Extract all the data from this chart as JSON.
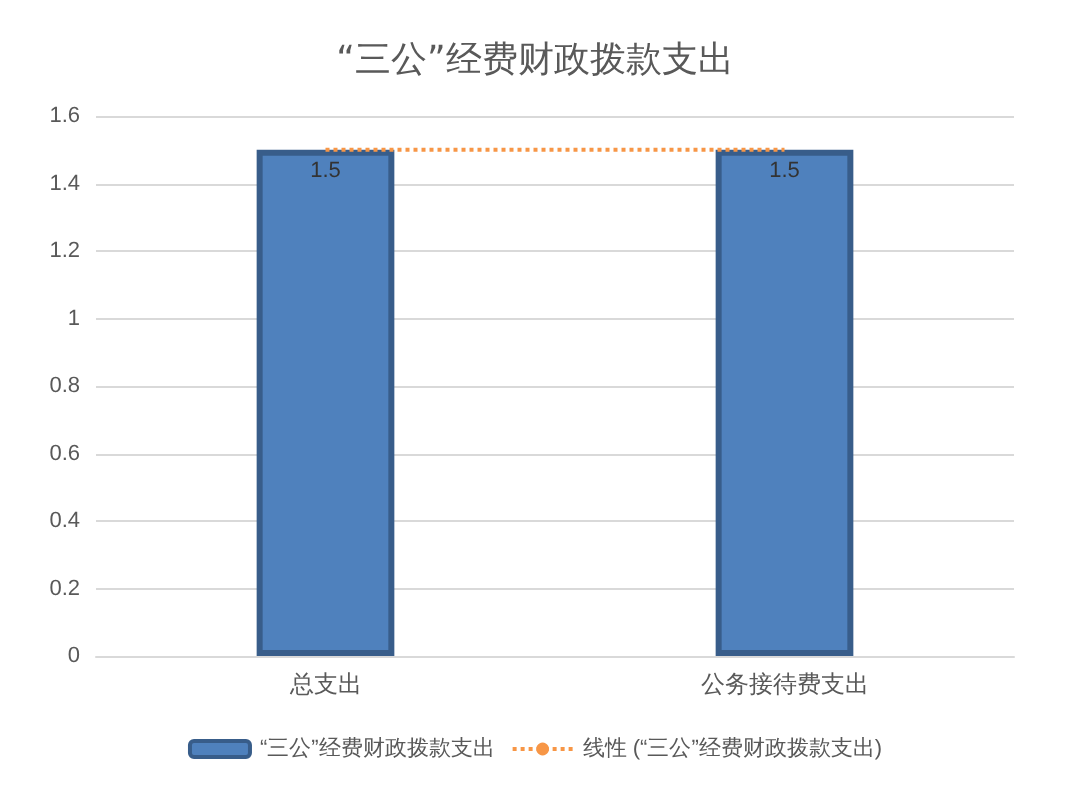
{
  "chart_data": {
    "type": "bar",
    "title": "“三公”经费财政拨款支出",
    "categories": [
      "总支出",
      "公务接待费支出"
    ],
    "series": [
      {
        "name": "“三公”经费财政拨款支出",
        "color": "#4f81bd",
        "values": [
          1.5,
          1.5
        ],
        "value_labels": [
          "1.5",
          "1.5"
        ]
      },
      {
        "name": "线性 (“三公”经费财政拨款支出)",
        "type": "line",
        "color": "#f79646",
        "values": [
          1.5,
          1.5
        ],
        "line_style": "dotted"
      }
    ],
    "ylim": [
      0,
      1.6
    ],
    "yticks": [
      0,
      0.2,
      0.4,
      0.6,
      0.8,
      1,
      1.2,
      1.4,
      1.6
    ],
    "grid": "y",
    "legend": "bottom",
    "marker": "none"
  }
}
